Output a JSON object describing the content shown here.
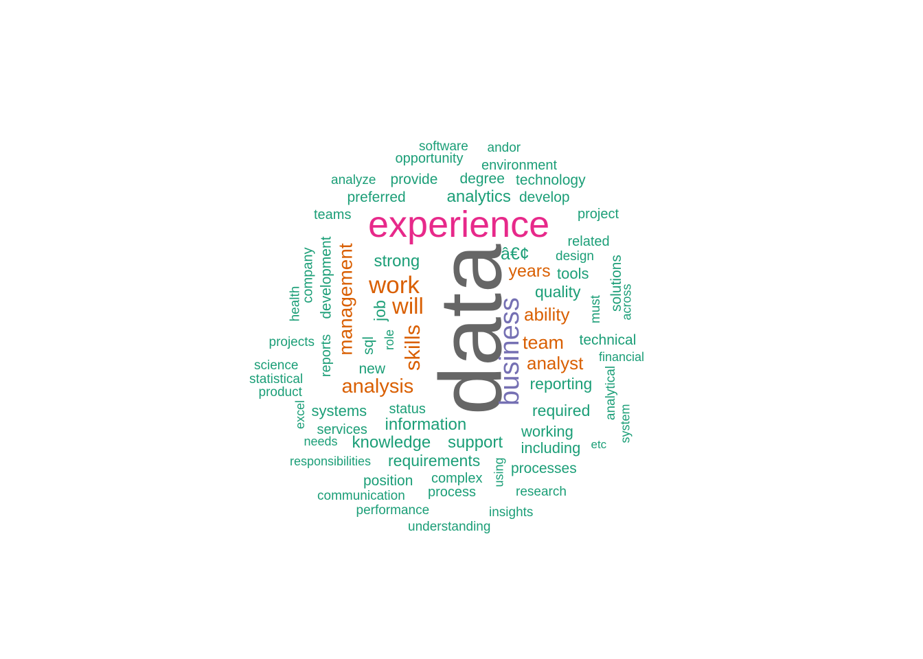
{
  "colors": {
    "gray": "#666666",
    "pink": "#E7298A",
    "purple": "#7570B3",
    "orange": "#D95F02",
    "green": "#1B9E77"
  },
  "words": [
    {
      "text": "data",
      "weight": 1,
      "color": "gray",
      "vertical": true
    },
    {
      "text": "experience",
      "weight": 0.5,
      "color": "pink",
      "vertical": false
    },
    {
      "text": "business",
      "weight": 0.34,
      "color": "purple",
      "vertical": true
    },
    {
      "text": "work",
      "weight": 0.28,
      "color": "orange",
      "vertical": false
    },
    {
      "text": "management",
      "weight": 0.27,
      "color": "orange",
      "vertical": true
    },
    {
      "text": "will",
      "weight": 0.26,
      "color": "orange",
      "vertical": false
    },
    {
      "text": "skills",
      "weight": 0.26,
      "color": "orange",
      "vertical": true
    },
    {
      "text": "analysis",
      "weight": 0.25,
      "color": "orange",
      "vertical": false
    },
    {
      "text": "team",
      "weight": 0.24,
      "color": "orange",
      "vertical": false
    },
    {
      "text": "analyst",
      "weight": 0.24,
      "color": "orange",
      "vertical": false
    },
    {
      "text": "years",
      "weight": 0.22,
      "color": "orange",
      "vertical": false
    },
    {
      "text": "ability",
      "weight": 0.22,
      "color": "orange",
      "vertical": false
    },
    {
      "text": "â€¢",
      "weight": 0.2,
      "color": "green",
      "vertical": false
    },
    {
      "text": "analytics",
      "weight": 0.2,
      "color": "green",
      "vertical": false
    },
    {
      "text": "strong",
      "weight": 0.2,
      "color": "green",
      "vertical": false
    },
    {
      "text": "quality",
      "weight": 0.19,
      "color": "green",
      "vertical": false
    },
    {
      "text": "reporting",
      "weight": 0.19,
      "color": "green",
      "vertical": false
    },
    {
      "text": "required",
      "weight": 0.19,
      "color": "green",
      "vertical": false
    },
    {
      "text": "information",
      "weight": 0.19,
      "color": "green",
      "vertical": false
    },
    {
      "text": "knowledge",
      "weight": 0.19,
      "color": "green",
      "vertical": false
    },
    {
      "text": "support",
      "weight": 0.19,
      "color": "green",
      "vertical": false
    },
    {
      "text": "requirements",
      "weight": 0.19,
      "color": "green",
      "vertical": false
    },
    {
      "text": "job",
      "weight": 0.18,
      "color": "green",
      "vertical": true
    },
    {
      "text": "sql",
      "weight": 0.17,
      "color": "green",
      "vertical": true
    },
    {
      "text": "development",
      "weight": 0.17,
      "color": "green",
      "vertical": true
    },
    {
      "text": "systems",
      "weight": 0.17,
      "color": "green",
      "vertical": false
    },
    {
      "text": "including",
      "weight": 0.17,
      "color": "green",
      "vertical": false
    },
    {
      "text": "working",
      "weight": 0.17,
      "color": "green",
      "vertical": false
    },
    {
      "text": "new",
      "weight": 0.16,
      "color": "green",
      "vertical": false
    },
    {
      "text": "tools",
      "weight": 0.16,
      "color": "green",
      "vertical": false
    },
    {
      "text": "technical",
      "weight": 0.16,
      "color": "green",
      "vertical": false
    },
    {
      "text": "solutions",
      "weight": 0.16,
      "color": "green",
      "vertical": true
    },
    {
      "text": "degree",
      "weight": 0.16,
      "color": "green",
      "vertical": false
    },
    {
      "text": "provide",
      "weight": 0.16,
      "color": "green",
      "vertical": false
    },
    {
      "text": "preferred",
      "weight": 0.16,
      "color": "green",
      "vertical": false
    },
    {
      "text": "technology",
      "weight": 0.16,
      "color": "green",
      "vertical": false
    },
    {
      "text": "develop",
      "weight": 0.16,
      "color": "green",
      "vertical": false
    },
    {
      "text": "teams",
      "weight": 0.15,
      "color": "green",
      "vertical": false
    },
    {
      "text": "company",
      "weight": 0.15,
      "color": "green",
      "vertical": true
    },
    {
      "text": "reports",
      "weight": 0.15,
      "color": "green",
      "vertical": true
    },
    {
      "text": "position",
      "weight": 0.15,
      "color": "green",
      "vertical": false
    },
    {
      "text": "processes",
      "weight": 0.15,
      "color": "green",
      "vertical": false
    },
    {
      "text": "related",
      "weight": 0.15,
      "color": "green",
      "vertical": false
    },
    {
      "text": "environment",
      "weight": 0.15,
      "color": "green",
      "vertical": false
    },
    {
      "text": "opportunity",
      "weight": 0.15,
      "color": "green",
      "vertical": false
    },
    {
      "text": "software",
      "weight": 0.14,
      "color": "green",
      "vertical": false
    },
    {
      "text": "project",
      "weight": 0.14,
      "color": "green",
      "vertical": false
    },
    {
      "text": "status",
      "weight": 0.14,
      "color": "green",
      "vertical": false
    },
    {
      "text": "services",
      "weight": 0.14,
      "color": "green",
      "vertical": false
    },
    {
      "text": "complex",
      "weight": 0.14,
      "color": "green",
      "vertical": false
    },
    {
      "text": "process",
      "weight": 0.14,
      "color": "green",
      "vertical": false
    },
    {
      "text": "must",
      "weight": 0.14,
      "color": "green",
      "vertical": true
    },
    {
      "text": "analytical",
      "weight": 0.14,
      "color": "green",
      "vertical": true
    },
    {
      "text": "design",
      "weight": 0.14,
      "color": "green",
      "vertical": false
    },
    {
      "text": "analyze",
      "weight": 0.14,
      "color": "green",
      "vertical": false
    },
    {
      "text": "andor",
      "weight": 0.14,
      "color": "green",
      "vertical": false
    },
    {
      "text": "role",
      "weight": 0.13,
      "color": "green",
      "vertical": true
    },
    {
      "text": "health",
      "weight": 0.13,
      "color": "green",
      "vertical": true
    },
    {
      "text": "projects",
      "weight": 0.13,
      "color": "green",
      "vertical": false
    },
    {
      "text": "science",
      "weight": 0.13,
      "color": "green",
      "vertical": false
    },
    {
      "text": "statistical",
      "weight": 0.13,
      "color": "green",
      "vertical": false
    },
    {
      "text": "product",
      "weight": 0.13,
      "color": "green",
      "vertical": false
    },
    {
      "text": "excel",
      "weight": 0.13,
      "color": "green",
      "vertical": true
    },
    {
      "text": "needs",
      "weight": 0.13,
      "color": "green",
      "vertical": false
    },
    {
      "text": "responsibilities",
      "weight": 0.13,
      "color": "green",
      "vertical": false
    },
    {
      "text": "communication",
      "weight": 0.13,
      "color": "green",
      "vertical": false
    },
    {
      "text": "performance",
      "weight": 0.13,
      "color": "green",
      "vertical": false
    },
    {
      "text": "understanding",
      "weight": 0.13,
      "color": "green",
      "vertical": false
    },
    {
      "text": "insights",
      "weight": 0.13,
      "color": "green",
      "vertical": false
    },
    {
      "text": "research",
      "weight": 0.13,
      "color": "green",
      "vertical": false
    },
    {
      "text": "using",
      "weight": 0.13,
      "color": "green",
      "vertical": true
    },
    {
      "text": "across",
      "weight": 0.13,
      "color": "green",
      "vertical": true
    },
    {
      "text": "financial",
      "weight": 0.12,
      "color": "green",
      "vertical": false
    },
    {
      "text": "system",
      "weight": 0.12,
      "color": "green",
      "vertical": true
    },
    {
      "text": "etc",
      "weight": 0.12,
      "color": "green",
      "vertical": false
    }
  ]
}
